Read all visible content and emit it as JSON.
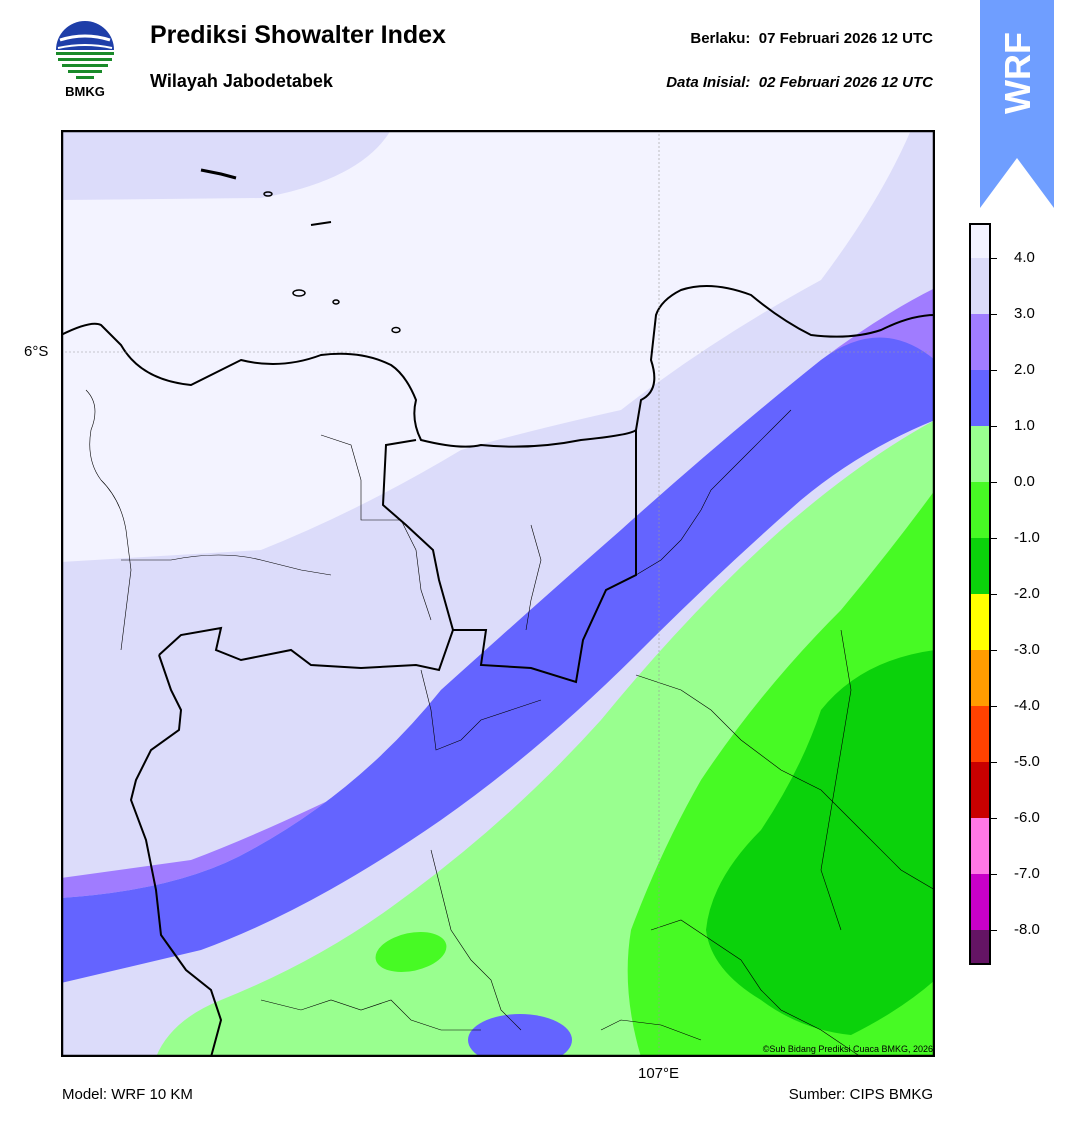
{
  "header": {
    "logo_text": "BMKG",
    "title": "Prediksi Showalter Index",
    "subtitle": "Wilayah Jabodetabek",
    "valid_label": "Berlaku:",
    "valid_value": "07 Februari 2026 12 UTC",
    "init_label": "Data Inisial:",
    "init_value": "02 Februari 2026 12 UTC"
  },
  "badge": {
    "text": "WRF",
    "color": "#6f9eff"
  },
  "map": {
    "lat_label": "6°S",
    "lon_label": "107°E",
    "copyright": "©Sub Bidang Prediksi Cuaca BMKG, 2026"
  },
  "colorbar": {
    "ticks": [
      "4.0",
      "3.0",
      "2.0",
      "1.0",
      "0.0",
      "-1.0",
      "-2.0",
      "-3.0",
      "-4.0",
      "-5.0",
      "-6.0",
      "-7.0",
      "-8.0"
    ],
    "colors": [
      "#f3f3ff",
      "#dcdcfa",
      "#a07cff",
      "#6464ff",
      "#99ff8f",
      "#47fa24",
      "#0bd20b",
      "#ffff00",
      "#ff9c00",
      "#ff4200",
      "#c80000",
      "#ff78e6",
      "#c800c8",
      "#641464"
    ]
  },
  "footer": {
    "model": "Model: WRF 10 KM",
    "source": "Sumber: CIPS BMKG"
  }
}
